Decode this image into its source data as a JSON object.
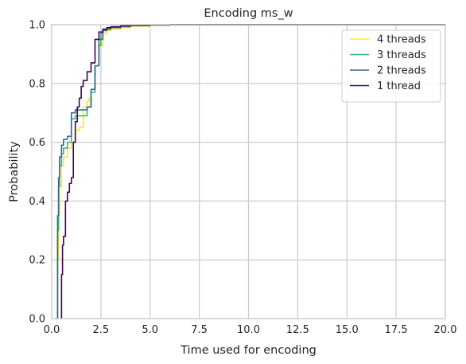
{
  "chart_data": {
    "type": "line",
    "title": "Encoding ms_w",
    "xlabel": "Time used for encoding",
    "ylabel": "Probability",
    "xlim": [
      0,
      20
    ],
    "ylim": [
      0,
      1
    ],
    "xticks": [
      0,
      2.5,
      5,
      7.5,
      10,
      12.5,
      15,
      17.5,
      20
    ],
    "xtick_labels": [
      "0.0",
      "2.5",
      "5.0",
      "7.5",
      "10.0",
      "12.5",
      "15.0",
      "17.5",
      "20.0"
    ],
    "yticks": [
      0,
      0.2,
      0.4,
      0.6,
      0.8,
      1.0
    ],
    "ytick_labels": [
      "0.0",
      "0.2",
      "0.4",
      "0.6",
      "0.8",
      "1.0"
    ],
    "grid": true,
    "legend_position": "top-right",
    "series": [
      {
        "name": "4 threads",
        "color": "#fde725",
        "x": [
          0.25,
          0.3,
          0.35,
          0.4,
          0.5,
          0.6,
          0.8,
          1.0,
          1.2,
          1.4,
          1.55,
          1.6,
          1.7,
          1.8,
          1.9,
          2.0,
          2.2,
          2.4,
          2.6,
          2.8,
          3.0,
          3.5,
          4.0,
          5.0,
          6.0
        ],
        "y": [
          0.0,
          0.2,
          0.35,
          0.45,
          0.52,
          0.55,
          0.58,
          0.6,
          0.64,
          0.65,
          0.65,
          0.72,
          0.72,
          0.74,
          0.75,
          0.78,
          0.86,
          0.93,
          0.97,
          0.98,
          0.985,
          0.99,
          0.995,
          0.998,
          1.0
        ]
      },
      {
        "name": "3 threads",
        "color": "#35b779",
        "x": [
          0.25,
          0.3,
          0.35,
          0.4,
          0.5,
          0.6,
          0.8,
          1.0,
          1.2,
          1.4,
          1.6,
          1.8,
          2.0,
          2.2,
          2.4,
          2.5,
          2.6,
          2.8,
          3.0,
          3.5,
          4.0,
          5.0,
          6.0
        ],
        "y": [
          0.0,
          0.3,
          0.45,
          0.52,
          0.56,
          0.58,
          0.6,
          0.68,
          0.69,
          0.69,
          0.69,
          0.72,
          0.77,
          0.86,
          0.93,
          0.97,
          0.98,
          0.985,
          0.99,
          0.993,
          0.997,
          0.999,
          1.0
        ]
      },
      {
        "name": "2 threads",
        "color": "#31688e",
        "x": [
          0.25,
          0.3,
          0.35,
          0.4,
          0.5,
          0.6,
          0.8,
          1.0,
          1.2,
          1.4,
          1.6,
          1.8,
          2.0,
          2.2,
          2.4,
          2.6,
          2.8,
          3.0,
          3.5,
          4.0,
          5.0,
          6.0
        ],
        "y": [
          0.0,
          0.35,
          0.48,
          0.55,
          0.59,
          0.61,
          0.62,
          0.7,
          0.71,
          0.71,
          0.71,
          0.72,
          0.78,
          0.86,
          0.95,
          0.98,
          0.985,
          0.99,
          0.995,
          0.997,
          0.999,
          1.0
        ]
      },
      {
        "name": "1 thread",
        "color": "#440154",
        "x": [
          0.45,
          0.5,
          0.55,
          0.6,
          0.7,
          0.8,
          0.9,
          1.0,
          1.1,
          1.2,
          1.3,
          1.4,
          1.5,
          1.6,
          1.8,
          2.0,
          2.2,
          2.4,
          2.6,
          2.8,
          3.0,
          3.5,
          4.0,
          5.0,
          6.0
        ],
        "y": [
          0.0,
          0.15,
          0.25,
          0.28,
          0.4,
          0.43,
          0.46,
          0.48,
          0.6,
          0.67,
          0.72,
          0.75,
          0.79,
          0.81,
          0.84,
          0.87,
          0.95,
          0.975,
          0.985,
          0.99,
          0.993,
          0.996,
          0.998,
          0.999,
          1.0
        ]
      }
    ]
  }
}
